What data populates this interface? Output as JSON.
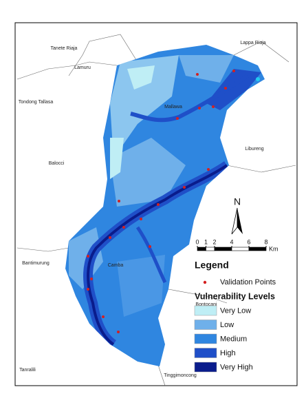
{
  "places": [
    "Tanete Riaja",
    "Lappa Riaja",
    "Lamuru",
    "Tondong Tallasa",
    "Mallawa",
    "Libureng",
    "Balocci",
    "Camba",
    "Bantimurung",
    "Bontocani",
    "Tanralili",
    "Tinggimoncong"
  ],
  "north_arrow": "N",
  "scale_bar": {
    "ticks": [
      0,
      1,
      2,
      4,
      6,
      8
    ],
    "unit": "Km"
  },
  "legend": {
    "title": "Legend",
    "points_label": "Validation Points",
    "points_color": "#d42020",
    "levels_title": "Vulnerability Levels",
    "levels": [
      {
        "name": "Very Low",
        "color": "#bfeef5"
      },
      {
        "name": "Low",
        "color": "#6fb0ea"
      },
      {
        "name": "Medium",
        "color": "#2f86e0"
      },
      {
        "name": "High",
        "color": "#1f4fc8"
      },
      {
        "name": "Very High",
        "color": "#0a1c8c"
      }
    ]
  }
}
